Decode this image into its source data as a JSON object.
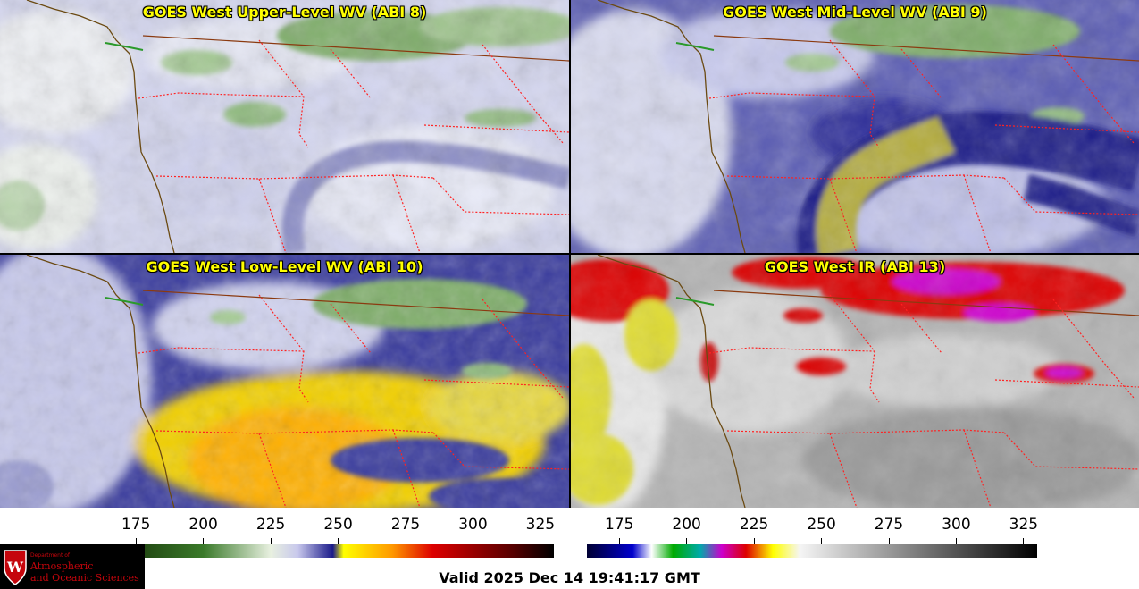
{
  "panels": {
    "upper": {
      "title": "GOES West Upper-Level WV (ABI 8)"
    },
    "mid": {
      "title": "GOES West Mid-Level WV (ABI 9)"
    },
    "low": {
      "title": "GOES West Low-Level WV (ABI 10)"
    },
    "ir": {
      "title": "GOES West IR (ABI 13)"
    }
  },
  "colorbars": {
    "wv": {
      "ticks": [
        "175",
        "200",
        "225",
        "250",
        "275",
        "300",
        "325"
      ],
      "range": [
        163,
        330
      ],
      "stops": [
        {
          "v": 163,
          "c": "#ffffff"
        },
        {
          "v": 170,
          "c": "#1b3a0c"
        },
        {
          "v": 200,
          "c": "#3a7a2a"
        },
        {
          "v": 225,
          "c": "#e8f0e0"
        },
        {
          "v": 235,
          "c": "#c8c8ec"
        },
        {
          "v": 248,
          "c": "#1a1a8a"
        },
        {
          "v": 252,
          "c": "#ffff00"
        },
        {
          "v": 270,
          "c": "#ff9900"
        },
        {
          "v": 285,
          "c": "#dd0000"
        },
        {
          "v": 315,
          "c": "#550000"
        },
        {
          "v": 330,
          "c": "#000000"
        }
      ]
    },
    "ir": {
      "ticks": [
        "175",
        "200",
        "225",
        "250",
        "275",
        "300",
        "325"
      ],
      "range": [
        163,
        330
      ],
      "stops": [
        {
          "v": 163,
          "c": "#000033"
        },
        {
          "v": 180,
          "c": "#0000cc"
        },
        {
          "v": 187,
          "c": "#ffffff"
        },
        {
          "v": 195,
          "c": "#00aa00"
        },
        {
          "v": 205,
          "c": "#00aaaa"
        },
        {
          "v": 213,
          "c": "#cc00cc"
        },
        {
          "v": 222,
          "c": "#dd0000"
        },
        {
          "v": 232,
          "c": "#ffff00"
        },
        {
          "v": 242,
          "c": "#f5f5f5"
        },
        {
          "v": 330,
          "c": "#000000"
        }
      ]
    }
  },
  "logo": {
    "line1": "Department of",
    "line2": "Atmospheric",
    "line3": "and Oceanic Sciences"
  },
  "valid_time": "Valid 2025 Dec 14 19:41:17 GMT",
  "colors": {
    "title": "#ffff00",
    "coast": "#8b4513",
    "state_border": "#ff2222"
  }
}
